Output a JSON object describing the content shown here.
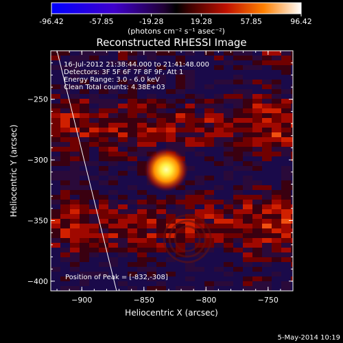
{
  "colorbar": {
    "tick_labels": [
      "-96.42",
      "-57.85",
      "-19.28",
      "19.28",
      "57.85",
      "96.42"
    ],
    "unit_label": "(photons cm⁻² s⁻¹ asec⁻²)",
    "range": [
      -96.42,
      96.42
    ]
  },
  "chart_data": {
    "type": "heatmap",
    "title": "Reconstructed RHESSI Image",
    "xlabel": "Heliocentric X (arcsec)",
    "ylabel": "Heliocentric Y (arcsec)",
    "xlim": [
      -925,
      -730
    ],
    "ylim": [
      -408,
      -210
    ],
    "x_ticks": [
      -900,
      -850,
      -800,
      -750
    ],
    "x_tick_labels": [
      "−900",
      "−850",
      "−800",
      "−750"
    ],
    "y_ticks": [
      -250,
      -300,
      -350,
      -400
    ],
    "y_tick_labels": [
      "−250",
      "−300",
      "−350",
      "−400"
    ],
    "peak": {
      "x": -832,
      "y": -308
    },
    "limb_line": {
      "x": [
        -920,
        -872
      ],
      "y": [
        -210,
        -408
      ]
    },
    "secondary_ring": {
      "x": [
        -790,
        -740
      ],
      "y": [
        -355,
        -390
      ]
    }
  },
  "info": {
    "line1": "16-Jul-2012 21:38:44.000 to 21:41:48.000",
    "line2": "Detectors: 3F 5F 6F 7F 8F 9F, Att 1",
    "line3": "Energy Range: 3.0 - 6.0 keV",
    "line4": "Clean     Total counts: 4.38E+03"
  },
  "peak_label": "Position of Peak = [-832,-308]",
  "footer_date": "5-May-2014 10:19"
}
